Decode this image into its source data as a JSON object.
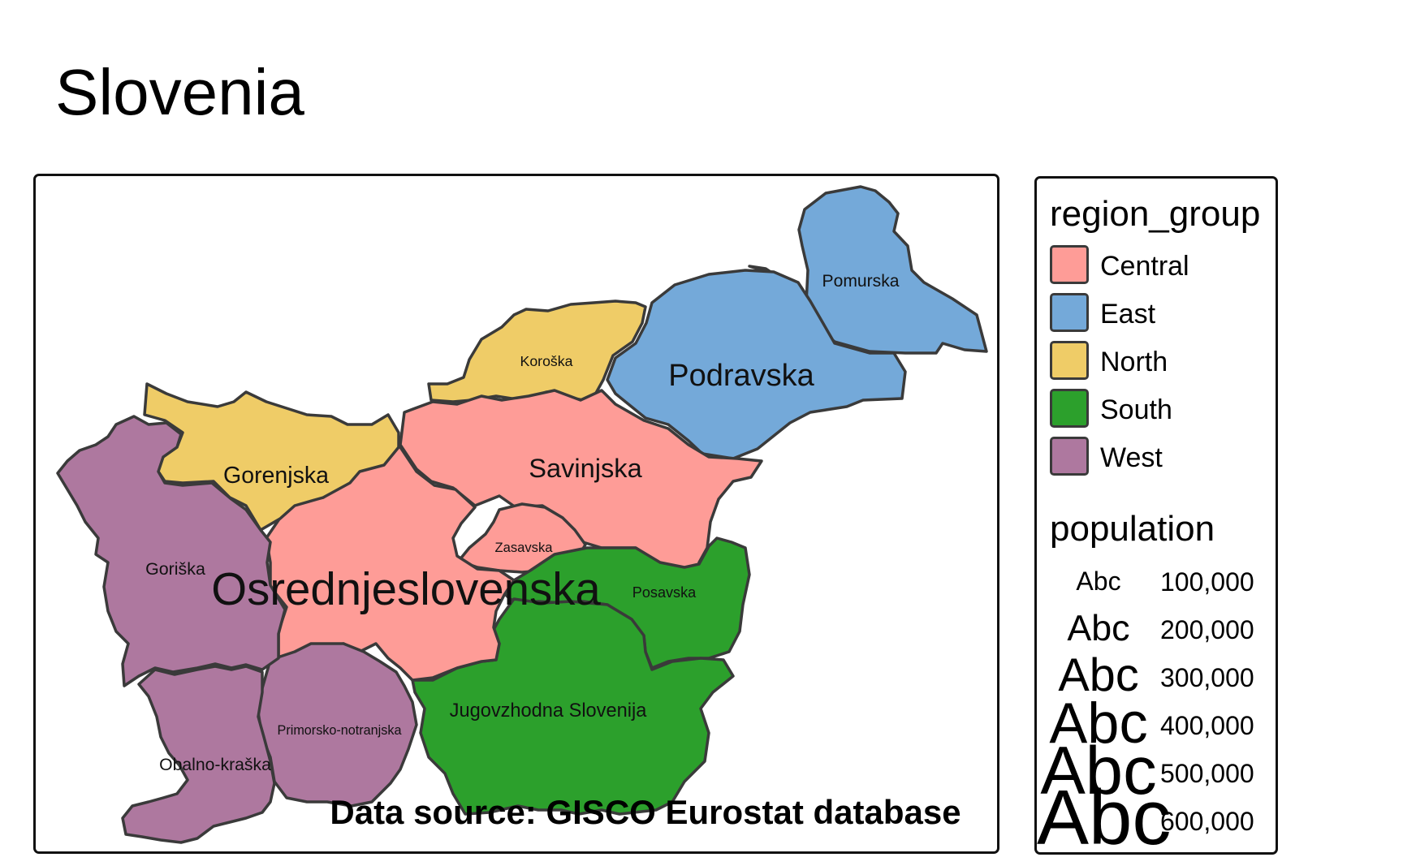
{
  "title": "Slovenia",
  "source_note": "Data source: GISCO Eurostat database",
  "colors": {
    "Central": "#fe9c97",
    "East": "#74a9d9",
    "North": "#efcc67",
    "South": "#2ca02c",
    "West": "#ae789f"
  },
  "regions": [
    {
      "name": "Pomurska",
      "group": "East",
      "population": 114000
    },
    {
      "name": "Podravska",
      "group": "East",
      "population": 325000
    },
    {
      "name": "Koroška",
      "group": "North",
      "population": 71000
    },
    {
      "name": "Savinjska",
      "group": "Central",
      "population": 258000
    },
    {
      "name": "Zasavska",
      "group": "Central",
      "population": 57000
    },
    {
      "name": "Posavska",
      "group": "South",
      "population": 76000
    },
    {
      "name": "Jugovzhodna Slovenija",
      "group": "South",
      "population": 145000
    },
    {
      "name": "Osrednjeslovenska",
      "group": "Central",
      "population": 555000
    },
    {
      "name": "Gorenjska",
      "group": "North",
      "population": 206000
    },
    {
      "name": "Primorsko-notranjska",
      "group": "West",
      "population": 53000
    },
    {
      "name": "Goriška",
      "group": "West",
      "population": 117000
    },
    {
      "name": "Obalno-kraška",
      "group": "West",
      "population": 115000
    }
  ],
  "legend": {
    "color_title": "region_group",
    "color_items": [
      "Central",
      "East",
      "North",
      "South",
      "West"
    ],
    "size_title": "population",
    "size_sample": "Abc",
    "size_items": [
      {
        "label": "100,000",
        "value": 100000
      },
      {
        "label": "200,000",
        "value": 200000
      },
      {
        "label": "300,000",
        "value": 300000
      },
      {
        "label": "400,000",
        "value": 400000
      },
      {
        "label": "500,000",
        "value": 500000
      },
      {
        "label": "600,000",
        "value": 600000
      }
    ]
  }
}
